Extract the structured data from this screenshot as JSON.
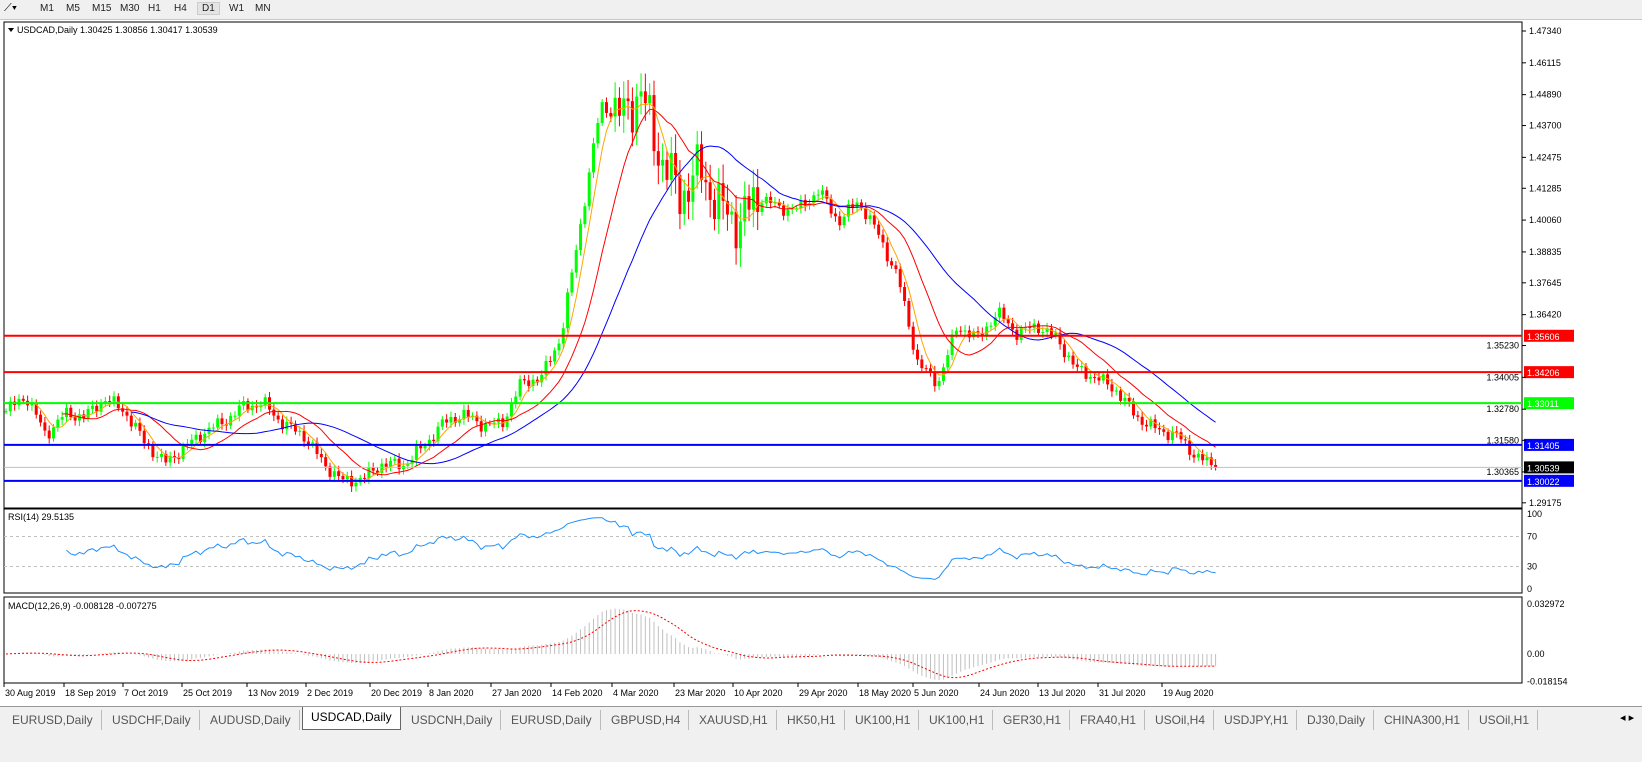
{
  "toolbar": {
    "timeframes": [
      "M1",
      "M5",
      "M15",
      "M30",
      "H1",
      "H4",
      "D1",
      "W1",
      "MN"
    ],
    "active": "D1"
  },
  "chart": {
    "header": "USDCAD,Daily  1.30425 1.30856 1.30417 1.30539",
    "rsi_label": "RSI(14) 29.5135",
    "macd_label": "MACD(12,26,9) -0.008128 -0.007275"
  },
  "chart_data": {
    "type": "candlestick",
    "symbol": "USDCAD",
    "timeframe": "Daily",
    "ohlc_last": {
      "open": 1.30425,
      "high": 1.30856,
      "low": 1.30417,
      "close": 1.30539
    },
    "ylim": [
      1.29175,
      1.4734
    ],
    "price_ticks": [
      "1.47340",
      "1.46115",
      "1.44890",
      "1.43700",
      "1.42475",
      "1.41285",
      "1.40060",
      "1.38835",
      "1.37645",
      "1.36420",
      "1.35230",
      "1.34005",
      "1.32780",
      "1.31580",
      "1.30365",
      "1.29175"
    ],
    "date_ticks": [
      "30 Aug 2019",
      "18 Sep 2019",
      "7 Oct 2019",
      "25 Oct 2019",
      "13 Nov 2019",
      "2 Dec 2019",
      "20 Dec 2019",
      "8 Jan 2020",
      "27 Jan 2020",
      "14 Feb 2020",
      "4 Mar 2020",
      "23 Mar 2020",
      "10 Apr 2020",
      "29 Apr 2020",
      "18 May 2020",
      "5 Jun 2020",
      "24 Jun 2020",
      "13 Jul 2020",
      "31 Jul 2020",
      "19 Aug 2020"
    ],
    "closes_sampled": [
      1.327,
      1.333,
      1.318,
      1.326,
      1.325,
      1.332,
      1.327,
      1.315,
      1.307,
      1.313,
      1.319,
      1.323,
      1.329,
      1.33,
      1.322,
      1.318,
      1.307,
      1.3,
      1.301,
      1.307,
      1.306,
      1.313,
      1.322,
      1.326,
      1.322,
      1.322,
      1.338,
      1.34,
      1.356,
      1.4,
      1.445,
      1.44,
      1.45,
      1.425,
      1.41,
      1.42,
      1.405,
      1.4,
      1.41,
      1.405,
      1.405,
      1.412,
      1.4,
      1.408,
      1.395,
      1.378,
      1.345,
      1.338,
      1.36,
      1.355,
      1.365,
      1.357,
      1.36,
      1.355,
      1.343,
      1.34,
      1.335,
      1.325,
      1.32,
      1.318,
      1.31,
      1.305
    ],
    "levels": [
      {
        "price": "1.35606",
        "color": "#ff0000"
      },
      {
        "price": "1.34206",
        "color": "#ff0000"
      },
      {
        "price": "1.33011",
        "color": "#00ff00"
      },
      {
        "price": "1.31405",
        "color": "#0000ff"
      },
      {
        "price": "1.30022",
        "color": "#0000ff"
      }
    ],
    "current_price": "1.30539",
    "moving_averages": [
      {
        "color": "#ffa500"
      },
      {
        "color": "#ff0000"
      },
      {
        "color": "#0000ff"
      }
    ],
    "candle_colors": {
      "up": "#00ff00",
      "down": "#ff0000"
    },
    "rsi": {
      "period": 14,
      "value": 29.5135,
      "ticks": [
        "100",
        "70",
        "30",
        "0"
      ],
      "levels": [
        70,
        30
      ],
      "color": "#1e90ff"
    },
    "macd": {
      "params": "12,26,9",
      "main": -0.008128,
      "signal": -0.007275,
      "ticks": [
        "0.032972",
        "0.00",
        "-0.018154"
      ],
      "histogram_color": "#c0c0c0",
      "signal_color": "#ff0000"
    }
  },
  "tabs": [
    "EURUSD,Daily",
    "USDCHF,Daily",
    "AUDUSD,Daily",
    "USDCAD,Daily",
    "USDCNH,Daily",
    "EURUSD,Daily",
    "GBPUSD,H4",
    "XAUUSD,H1",
    "HK50,H1",
    "UK100,H1",
    "UK100,H1",
    "GER30,H1",
    "FRA40,H1",
    "USOil,H4",
    "USDJPY,H1",
    "DJ30,Daily",
    "CHINA300,H1",
    "USOil,H1"
  ],
  "active_tab": "USDCAD,Daily"
}
